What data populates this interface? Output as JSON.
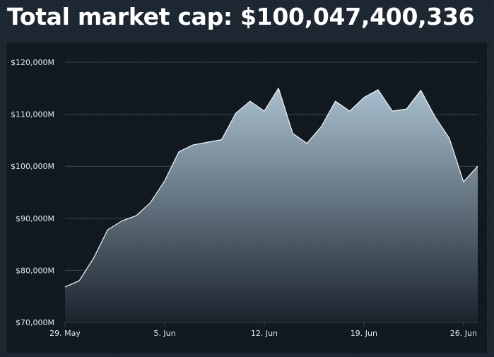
{
  "header": {
    "title": "Total market cap: $100,047,400,336"
  },
  "chart_data": {
    "type": "area",
    "title": "Total market cap: $100,047,400,336",
    "xlabel": "",
    "ylabel": "",
    "ylim": [
      70000,
      120000
    ],
    "y_ticks": [
      70000,
      80000,
      90000,
      100000,
      110000,
      120000
    ],
    "y_tick_labels": [
      "$70,000M",
      "$80,000M",
      "$90,000M",
      "$100,000M",
      "$110,000M",
      "$120,000M"
    ],
    "x_ticks": [
      {
        "day": 0,
        "label": "29. May"
      },
      {
        "day": 7,
        "label": "5. Jun"
      },
      {
        "day": 14,
        "label": "12. Jun"
      },
      {
        "day": 21,
        "label": "19. Jun"
      },
      {
        "day": 28,
        "label": "26. Jun"
      }
    ],
    "grid": true,
    "series": [
      {
        "x": [
          0,
          1,
          2,
          3,
          4,
          5,
          6,
          7,
          8,
          9,
          10,
          11,
          12,
          13,
          14,
          15,
          16,
          17,
          18,
          19,
          20,
          21,
          22,
          23,
          24,
          25,
          26,
          27,
          28,
          29
        ],
        "values": [
          76800,
          78000,
          82300,
          87800,
          89500,
          90500,
          93000,
          97200,
          102800,
          104100,
          104600,
          105100,
          110200,
          112500,
          110600,
          115000,
          106300,
          104400,
          107600,
          112500,
          110600,
          113200,
          114700,
          110600,
          111000,
          114600,
          109500,
          105400,
          97000,
          100047
        ]
      }
    ],
    "colors": {
      "area_top": "#a9bfcf",
      "area_bottom": "#1a232c",
      "line": "#e8eef2",
      "grid": "#3a4650",
      "tick_text": "#e0e6ea"
    }
  }
}
